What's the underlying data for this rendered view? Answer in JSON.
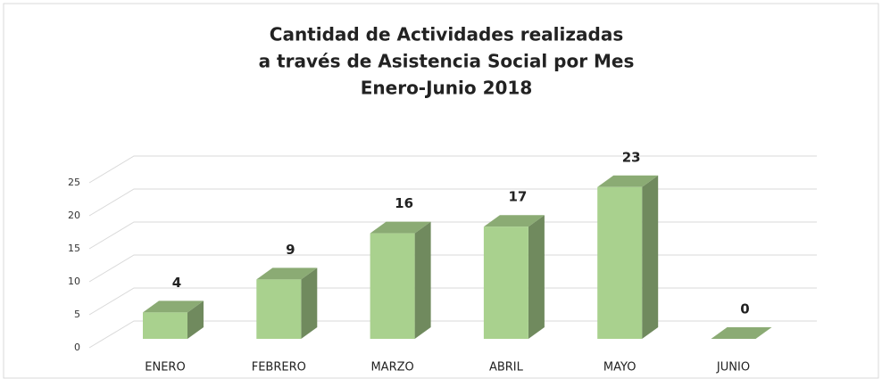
{
  "chart_data": {
    "type": "bar3d",
    "title": [
      "Cantidad de Actividades realizadas",
      "a través de Asistencia Social por Mes",
      "Enero-Junio 2018"
    ],
    "categories": [
      "ENERO",
      "FEBRERO",
      "MARZO",
      "ABRIL",
      "MAYO",
      "JUNIO"
    ],
    "values": [
      4,
      9,
      16,
      17,
      23,
      0
    ],
    "color": "#a9d18e",
    "ylim": [
      0,
      25
    ],
    "yticks": [
      0,
      5,
      10,
      15,
      20,
      25
    ],
    "grid": true
  }
}
